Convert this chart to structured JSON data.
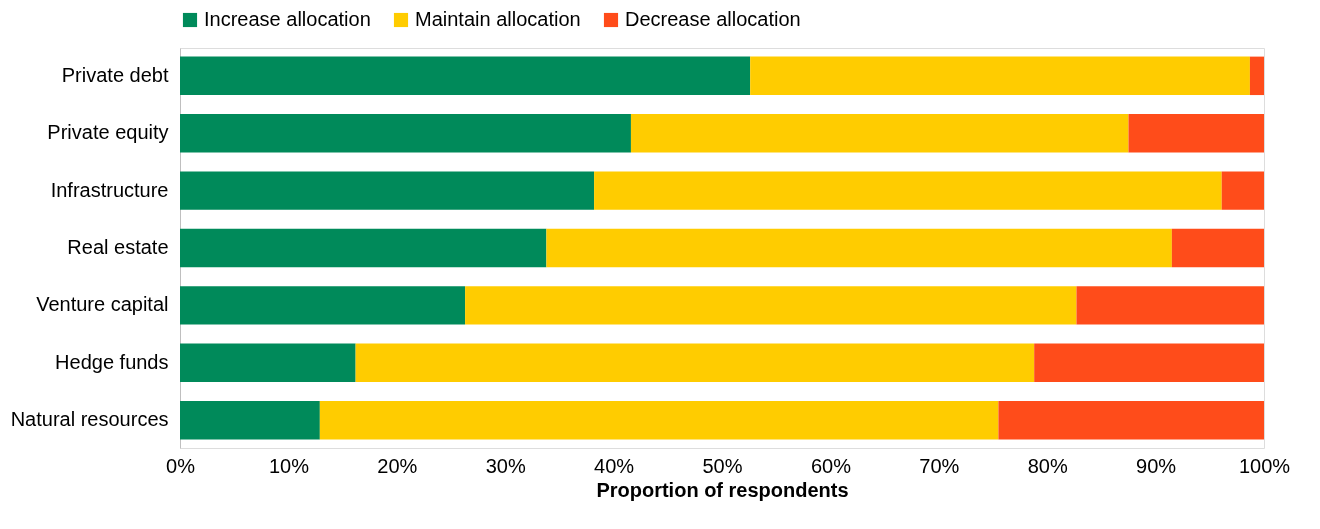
{
  "chart_data": {
    "type": "bar",
    "orientation": "horizontal",
    "stacked": true,
    "xlabel": "Proportion of respondents",
    "categories": [
      "Private debt",
      "Private equity",
      "Infrastructure",
      "Real estate",
      "Venture capital",
      "Hedge funds",
      "Natural resources"
    ],
    "series": [
      {
        "name": "Increase allocation",
        "color": "#008a5a",
        "values": [
          52.6,
          41.6,
          38.2,
          33.8,
          26.3,
          16.2,
          12.9
        ]
      },
      {
        "name": "Maintain allocation",
        "color": "#ffcc00",
        "values": [
          46.1,
          45.9,
          57.9,
          57.7,
          56.4,
          62.6,
          62.6
        ]
      },
      {
        "name": "Decrease allocation",
        "color": "#ff4c1a",
        "values": [
          1.3,
          12.5,
          3.9,
          8.5,
          17.3,
          21.2,
          24.5
        ]
      }
    ],
    "xlim": [
      0,
      100
    ],
    "xticks": [
      {
        "value": 0,
        "label": "0%"
      },
      {
        "value": 10,
        "label": "10%"
      },
      {
        "value": 20,
        "label": "20%"
      },
      {
        "value": 30,
        "label": "30%"
      },
      {
        "value": 40,
        "label": "40%"
      },
      {
        "value": 50,
        "label": "50%"
      },
      {
        "value": 60,
        "label": "60%"
      },
      {
        "value": 70,
        "label": "70%"
      },
      {
        "value": 80,
        "label": "80%"
      },
      {
        "value": 90,
        "label": "90%"
      },
      {
        "value": 100,
        "label": "100%"
      }
    ],
    "grid": false,
    "legend": "top"
  }
}
